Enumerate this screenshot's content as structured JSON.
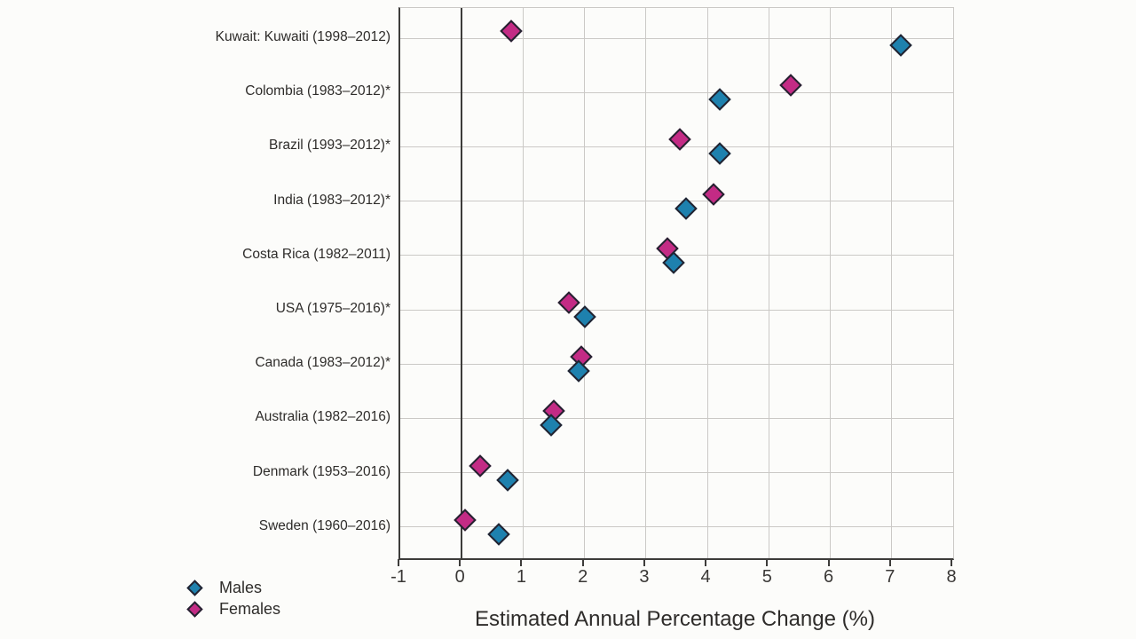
{
  "chart_data": {
    "type": "scatter",
    "subtype": "horizontal-dot-plot",
    "title": "",
    "xlabel": "Estimated Annual Percentage Change (%)",
    "xlim": [
      -1,
      8
    ],
    "xticks": [
      -1,
      0,
      1,
      2,
      3,
      4,
      5,
      6,
      7,
      8
    ],
    "grid": true,
    "zero_line_at": 0,
    "marker": "diamond",
    "legend_position": "bottom-left",
    "categories": [
      "Kuwait: Kuwaiti (1998–2012)",
      "Colombia (1983–2012)*",
      "Brazil (1993–2012)*",
      "India (1983–2012)*",
      "Costa Rica (1982–2011)",
      "USA (1975–2016)*",
      "Canada (1983–2012)*",
      "Australia (1982–2016)",
      "Denmark (1953–2016)",
      "Sweden (1960–2016)"
    ],
    "series": [
      {
        "name": "Males",
        "color": "#1e81ae",
        "values": [
          7.15,
          4.2,
          4.2,
          3.65,
          3.45,
          2.0,
          1.9,
          1.45,
          0.75,
          0.6
        ]
      },
      {
        "name": "Females",
        "color": "#c32b85",
        "values": [
          0.8,
          5.35,
          3.55,
          4.1,
          3.35,
          1.75,
          1.95,
          1.5,
          0.3,
          0.05
        ]
      }
    ]
  },
  "colors": {
    "male_fill": "#1e81ae",
    "female_fill": "#c32b85",
    "marker_border": "#232330",
    "gridline": "#cbc9c6",
    "axis_dark": "#3d3c3a",
    "background": "#fcfcfa",
    "text": "#2e2c2a"
  }
}
